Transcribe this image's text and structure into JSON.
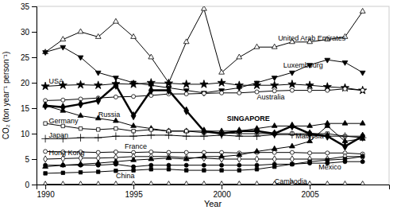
{
  "chart_data": {
    "type": "line",
    "x": [
      1990,
      1991,
      1992,
      1993,
      1994,
      1995,
      1996,
      1997,
      1998,
      1999,
      2000,
      2001,
      2002,
      2003,
      2004,
      2005,
      2006,
      2007,
      2008
    ],
    "xlabel": "Year",
    "ylabel": "CO₂ (ton year⁻¹ person⁻¹)",
    "xlim": [
      1989.5,
      2009.5
    ],
    "ylim": [
      0,
      35
    ],
    "xticks": [
      1990,
      1995,
      2000,
      2005
    ],
    "yticks": [
      0,
      5,
      10,
      15,
      20,
      25,
      30,
      35
    ],
    "grid": false,
    "series": [
      {
        "name": "United Arab Emirates",
        "color": "black",
        "marker": "triangle-up-open",
        "line_style": "solid",
        "values": [
          26,
          28.5,
          30,
          29,
          32,
          29,
          25,
          20,
          28,
          34.5,
          22,
          25,
          27,
          27,
          28,
          28,
          28.5,
          29,
          34
        ]
      },
      {
        "name": "Luxembourg",
        "color": "black",
        "marker": "triangle-down",
        "line_style": "solid",
        "values": [
          26,
          27,
          25,
          22,
          21,
          20,
          19.5,
          19,
          18.5,
          18,
          18.5,
          19,
          20,
          21,
          22,
          23.5,
          24.5,
          24,
          22
        ]
      },
      {
        "name": "USA",
        "color": "black",
        "marker": "star",
        "line_style": "solid",
        "values": [
          19.3,
          19.5,
          19.6,
          19.5,
          19.8,
          19.7,
          20.0,
          19.9,
          19.7,
          19.7,
          20.0,
          19.5,
          19.5,
          19.5,
          19.7,
          19.5,
          19.2,
          19.0,
          18.5
        ]
      },
      {
        "name": "Australia",
        "color": "black",
        "marker": "circle-open",
        "line_style": "solid",
        "values": [
          16.5,
          16.6,
          16.8,
          17.0,
          17.2,
          17.3,
          17.5,
          17.8,
          17.8,
          17.9,
          18.0,
          18.0,
          18.2,
          18.4,
          18.5,
          18.5,
          18.5,
          18.8,
          18.5
        ]
      },
      {
        "name": "Russia",
        "color": "black",
        "marker": "triangle-up",
        "line_style": "solid",
        "values": [
          15.5,
          14.5,
          13.5,
          13.0,
          12.5,
          11.5,
          11.0,
          10.5,
          10.5,
          10.5,
          10.5,
          10.5,
          11.0,
          11.5,
          11.5,
          11.5,
          12.0,
          12.0,
          12.0
        ]
      },
      {
        "name": "SINGAPORE",
        "color": "black",
        "marker": "diamond",
        "line_style": "thick",
        "values": [
          15.5,
          15.2,
          15.8,
          16.5,
          19.5,
          13.5,
          18.5,
          18.5,
          14.5,
          10.5,
          10.0,
          10.5,
          10.5,
          10.0,
          11.5,
          10.0,
          9.5,
          7.5,
          9.5
        ]
      },
      {
        "name": "Germany",
        "color": "black",
        "marker": "square-open",
        "line_style": "solid",
        "values": [
          12.0,
          11.5,
          11.0,
          10.8,
          11.0,
          10.5,
          10.8,
          10.5,
          10.5,
          10.2,
          10.2,
          10.0,
          10.0,
          10.0,
          10.0,
          10.0,
          10.0,
          9.5,
          9.5
        ]
      },
      {
        "name": "Japan",
        "color": "black",
        "marker": "plus",
        "line_style": "solid",
        "values": [
          9.0,
          9.0,
          9.2,
          9.2,
          9.5,
          9.5,
          9.7,
          9.7,
          9.5,
          9.5,
          9.7,
          9.5,
          9.5,
          9.8,
          9.8,
          9.7,
          9.5,
          9.5,
          9.2
        ]
      },
      {
        "name": "France",
        "color": "black",
        "marker": "circle-open",
        "line_style": "solid",
        "values": [
          6.5,
          6.4,
          6.4,
          6.3,
          6.4,
          6.3,
          6.4,
          6.3,
          6.3,
          6.3,
          6.3,
          6.2,
          6.3,
          6.3,
          6.3,
          6.2,
          6.2,
          6.2,
          6.0
        ]
      },
      {
        "name": "Hong Kong",
        "color": "black",
        "marker": "diamond-open",
        "line_style": "solid",
        "values": [
          5.0,
          5.1,
          5.2,
          5.2,
          5.3,
          5.5,
          5.5,
          5.5,
          5.3,
          5.2,
          5.0,
          5.0,
          5.0,
          5.0,
          5.0,
          5.0,
          5.0,
          5.5,
          5.5
        ]
      },
      {
        "name": "Malaysia",
        "color": "black",
        "marker": "triangle-up",
        "line_style": "solid",
        "values": [
          3.5,
          3.8,
          4.0,
          4.2,
          4.5,
          4.8,
          5.0,
          5.2,
          5.0,
          5.5,
          5.5,
          5.8,
          6.5,
          7.0,
          7.5,
          8.5,
          11.5,
          8.5,
          9.0
        ]
      },
      {
        "name": "Mexico",
        "color": "black",
        "marker": "circle",
        "line_style": "solid",
        "values": [
          3.8,
          3.8,
          3.8,
          3.8,
          4.0,
          3.5,
          3.8,
          3.8,
          3.8,
          3.8,
          3.8,
          3.8,
          3.8,
          4.0,
          4.0,
          4.2,
          4.2,
          4.5,
          4.5
        ]
      },
      {
        "name": "China",
        "color": "black",
        "marker": "square",
        "line_style": "solid",
        "values": [
          2.2,
          2.3,
          2.4,
          2.5,
          2.7,
          2.8,
          3.0,
          3.0,
          2.8,
          2.8,
          2.8,
          2.8,
          3.0,
          3.5,
          4.0,
          4.5,
          4.8,
          5.0,
          5.5
        ]
      },
      {
        "name": "Cambodia",
        "color": "black",
        "marker": "triangle-up-open",
        "line_style": "solid",
        "values": [
          0.05,
          0.05,
          0.05,
          0.05,
          0.07,
          0.07,
          0.07,
          0.07,
          0.07,
          0.08,
          0.08,
          0.08,
          0.08,
          0.08,
          0.08,
          0.08,
          0.08,
          0.08,
          0.08
        ]
      }
    ],
    "annotations": [
      {
        "text": "United Arab Emirates",
        "x": 2003.2,
        "y": 28.8
      },
      {
        "text": "Luxembourg",
        "x": 2003.5,
        "y": 23.5
      },
      {
        "text": "USA",
        "x": 1990.2,
        "y": 20.3
      },
      {
        "text": "Australia",
        "x": 2002.0,
        "y": 17.2
      },
      {
        "text": "Russia",
        "x": 1993.0,
        "y": 13.8
      },
      {
        "text": "SINGAPORE",
        "x": 2000.3,
        "y": 13.0
      },
      {
        "text": "Germany",
        "x": 1990.2,
        "y": 12.6
      },
      {
        "text": "Japan",
        "x": 1990.2,
        "y": 9.7
      },
      {
        "text": "France",
        "x": 1994.5,
        "y": 7.5
      },
      {
        "text": "Hong Kong",
        "x": 1990.2,
        "y": 6.2
      },
      {
        "text": "Malaysia",
        "x": 2004.2,
        "y": 9.5
      },
      {
        "text": "Mexico",
        "x": 2005.5,
        "y": 3.5
      },
      {
        "text": "China",
        "x": 1994.0,
        "y": 1.7
      },
      {
        "text": "Cambodia",
        "x": 2003.0,
        "y": 0.7
      }
    ]
  }
}
